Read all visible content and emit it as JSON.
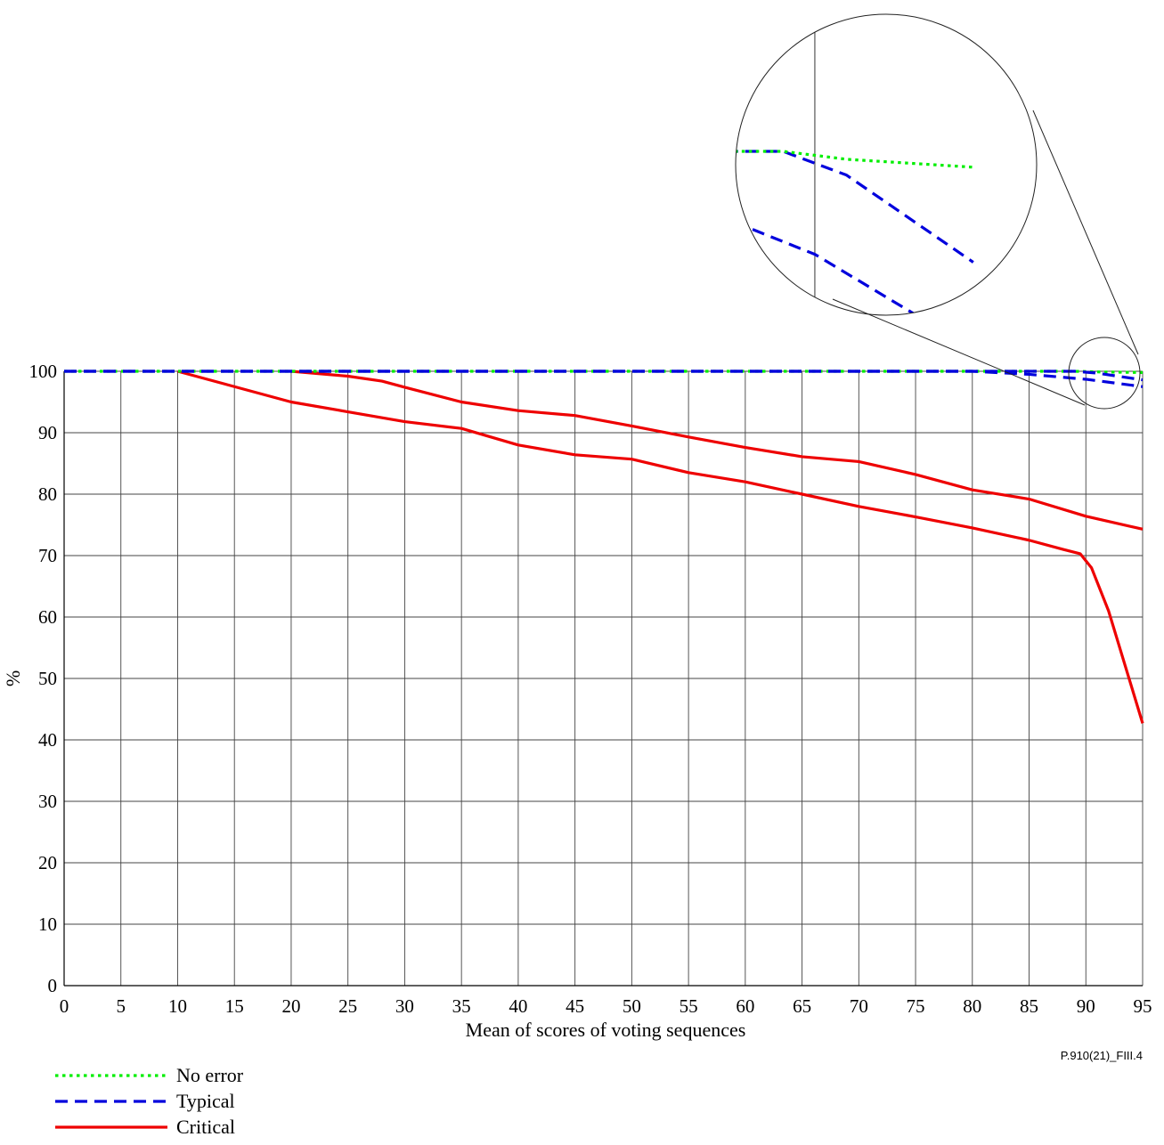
{
  "chart_data": {
    "type": "line",
    "title": "",
    "xlabel": "Mean of scores of voting sequences",
    "ylabel": "%",
    "figure_id": "P.910(21)_FIII.4",
    "xlim": [
      0,
      95
    ],
    "ylim": [
      0,
      100
    ],
    "x_ticks": [
      0,
      5,
      10,
      15,
      20,
      25,
      30,
      35,
      40,
      45,
      50,
      55,
      60,
      65,
      70,
      75,
      80,
      85,
      90,
      95
    ],
    "y_ticks": [
      0,
      10,
      20,
      30,
      40,
      50,
      60,
      70,
      80,
      90,
      100
    ],
    "grid": true,
    "legend_position": "bottom-left",
    "inset": "circular magnified view of the region near x = 90–95, y ≈ 97–100",
    "series": [
      {
        "name": "No error",
        "style": "dotted",
        "color": "#00ee00",
        "points": [
          [
            0,
            100
          ],
          [
            89,
            100
          ],
          [
            91,
            99.9
          ],
          [
            95,
            99.8
          ]
        ]
      },
      {
        "name": "Typical",
        "style": "dashed",
        "color": "#0000dd",
        "points": [
          [
            0,
            100
          ],
          [
            89,
            100
          ],
          [
            91,
            99.7
          ],
          [
            95,
            98.6
          ]
        ]
      },
      {
        "name": "Typical",
        "style": "dashed",
        "color": "#0000dd",
        "points": [
          [
            0,
            100
          ],
          [
            80,
            100
          ],
          [
            85,
            99.5
          ],
          [
            90,
            98.7
          ],
          [
            95,
            97.5
          ]
        ]
      },
      {
        "name": "Critical",
        "style": "solid",
        "color": "#ee0000",
        "points": [
          [
            20,
            100
          ],
          [
            25,
            99.2
          ],
          [
            28,
            98.4
          ],
          [
            30,
            97.4
          ],
          [
            35,
            95
          ],
          [
            40,
            93.6
          ],
          [
            45,
            92.8
          ],
          [
            50,
            91.1
          ],
          [
            55,
            89.3
          ],
          [
            60,
            87.6
          ],
          [
            65,
            86.1
          ],
          [
            70,
            85.3
          ],
          [
            75,
            83.2
          ],
          [
            80,
            80.7
          ],
          [
            85,
            79.2
          ],
          [
            90,
            76.4
          ],
          [
            95,
            74.3
          ]
        ]
      },
      {
        "name": "Critical",
        "style": "solid",
        "color": "#ee0000",
        "points": [
          [
            10,
            100
          ],
          [
            15,
            97.5
          ],
          [
            20,
            95
          ],
          [
            25,
            93.4
          ],
          [
            30,
            91.8
          ],
          [
            35,
            90.7
          ],
          [
            40,
            88
          ],
          [
            45,
            86.4
          ],
          [
            50,
            85.7
          ],
          [
            55,
            83.5
          ],
          [
            60,
            82
          ],
          [
            65,
            80
          ],
          [
            70,
            78
          ],
          [
            75,
            76.3
          ],
          [
            80,
            74.5
          ],
          [
            85,
            72.5
          ],
          [
            88,
            71
          ],
          [
            89.5,
            70.3
          ],
          [
            90.5,
            68
          ],
          [
            92,
            61
          ],
          [
            95,
            42.7
          ]
        ]
      }
    ]
  }
}
